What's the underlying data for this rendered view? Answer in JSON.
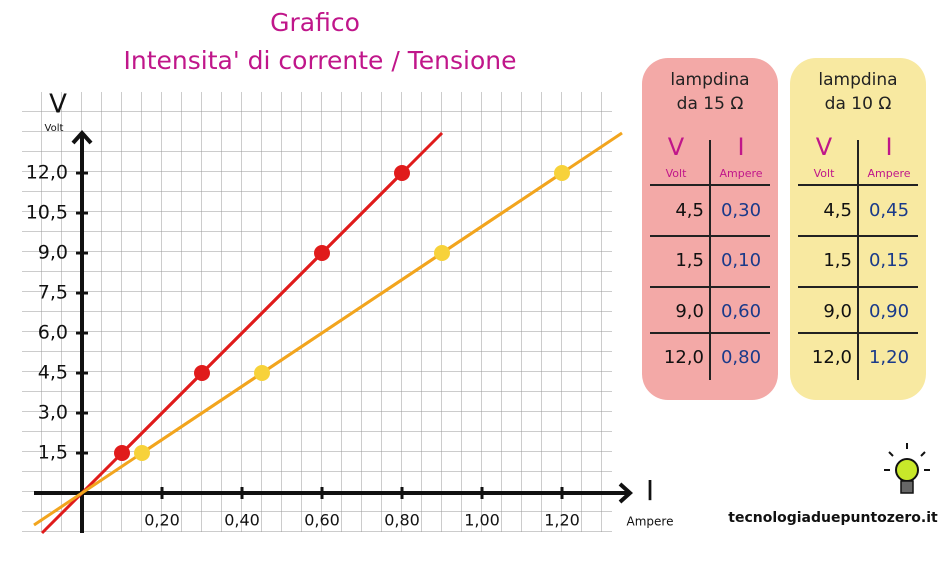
{
  "chart_data": {
    "type": "line",
    "title": [
      "Grafico",
      "Intensita' di corrente / Tensione"
    ],
    "y_label": "V",
    "y_unit": "Volt",
    "x_label": "I",
    "x_unit": "Ampere",
    "xlim": [
      -0.12,
      1.37
    ],
    "ylim": [
      -1.5,
      13.5
    ],
    "xticks": [
      {
        "value": 0.2,
        "label": "0,20"
      },
      {
        "value": 0.4,
        "label": "0,40"
      },
      {
        "value": 0.6,
        "label": "0,60"
      },
      {
        "value": 0.8,
        "label": "0,80"
      },
      {
        "value": 1.0,
        "label": "1,00"
      },
      {
        "value": 1.2,
        "label": "1,20"
      }
    ],
    "yticks": [
      {
        "value": 1.5,
        "label": "1,5"
      },
      {
        "value": 3.0,
        "label": "3,0"
      },
      {
        "value": 4.5,
        "label": "4,5"
      },
      {
        "value": 6.0,
        "label": "6,0"
      },
      {
        "value": 7.5,
        "label": "7,5"
      },
      {
        "value": 9.0,
        "label": "9,0"
      },
      {
        "value": 10.5,
        "label": "10,5"
      },
      {
        "value": 12.0,
        "label": "12,0"
      }
    ],
    "grid": true,
    "series": [
      {
        "color": "#e01b1b",
        "x": [
          0.1,
          0.3,
          0.6,
          0.8
        ],
        "values": [
          1.5,
          4.5,
          9.0,
          12.0
        ]
      },
      {
        "color": "#f2a51e",
        "point_color": "#f7d23a",
        "x": [
          0.15,
          0.45,
          0.9,
          1.2
        ],
        "values": [
          1.5,
          4.5,
          9.0,
          12.0
        ]
      }
    ]
  },
  "tables": [
    {
      "title": [
        "lampdina",
        "da 15 Ω"
      ],
      "color": "#f3a9a7",
      "headers": [
        {
          "symbol": "V",
          "unit": "Volt"
        },
        {
          "symbol": "I",
          "unit": "Ampere"
        }
      ],
      "rows": [
        [
          "4,5",
          "0,30"
        ],
        [
          "1,5",
          "0,10"
        ],
        [
          "9,0",
          "0,60"
        ],
        [
          "12,0",
          "0,80"
        ]
      ]
    },
    {
      "title": [
        "lampdina",
        "da 10 Ω"
      ],
      "color": "#f8e9a1",
      "headers": [
        {
          "symbol": "V",
          "unit": "Volt"
        },
        {
          "symbol": "I",
          "unit": "Ampere"
        }
      ],
      "rows": [
        [
          "4,5",
          "0,45"
        ],
        [
          "1,5",
          "0,15"
        ],
        [
          "9,0",
          "0,90"
        ],
        [
          "12,0",
          "1,20"
        ]
      ]
    }
  ],
  "footer": "tecnologiaduepuntozero.it"
}
